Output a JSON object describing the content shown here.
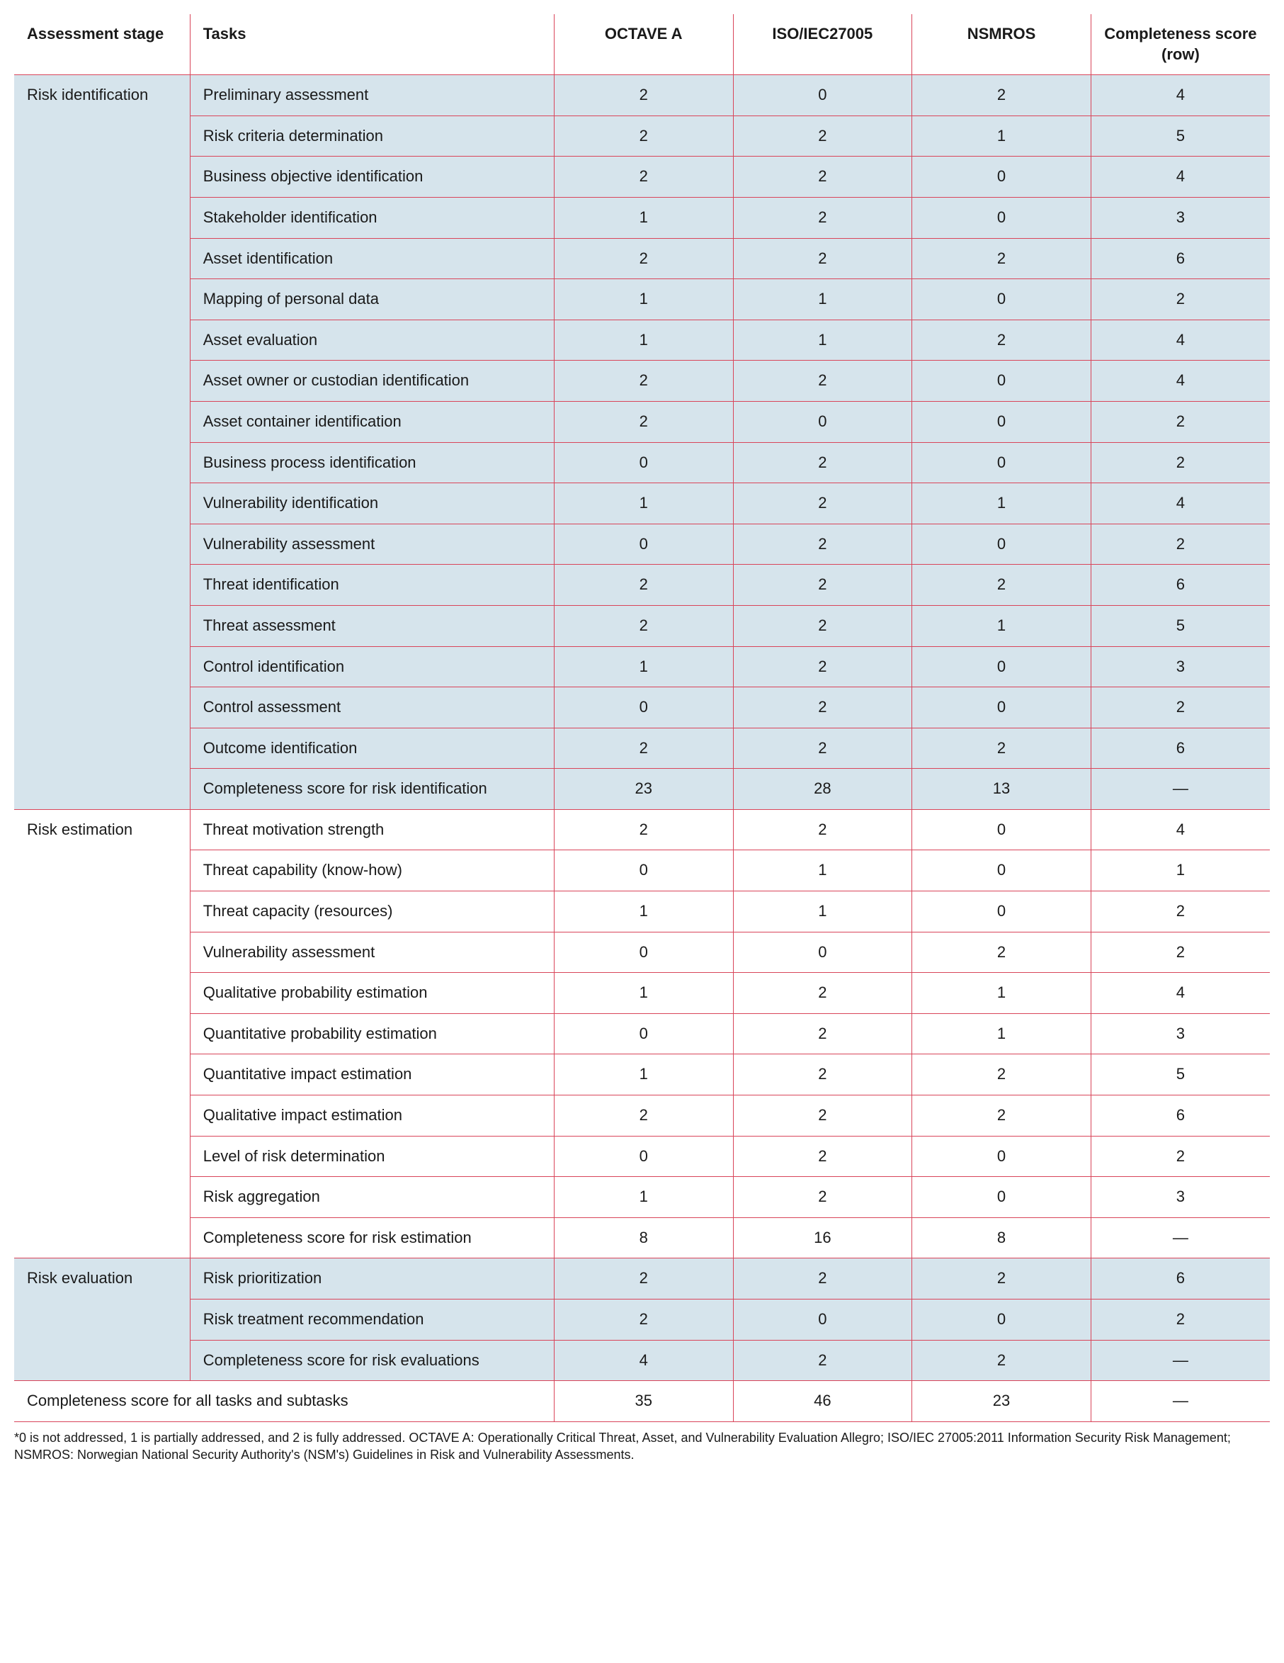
{
  "columns": {
    "stage": "Assessment stage",
    "tasks": "Tasks",
    "c1": "OCTAVE A",
    "c2": "ISO/IEC27005",
    "c3": "NSMROS",
    "c4": "Completeness score (row)"
  },
  "stages": [
    {
      "name": "Risk identification",
      "shaded": true,
      "rows": [
        {
          "task": "Preliminary assessment",
          "v": [
            "2",
            "0",
            "2",
            "4"
          ]
        },
        {
          "task": "Risk criteria determination",
          "v": [
            "2",
            "2",
            "1",
            "5"
          ]
        },
        {
          "task": "Business objective identification",
          "v": [
            "2",
            "2",
            "0",
            "4"
          ]
        },
        {
          "task": "Stakeholder identification",
          "v": [
            "1",
            "2",
            "0",
            "3"
          ]
        },
        {
          "task": "Asset identification",
          "v": [
            "2",
            "2",
            "2",
            "6"
          ]
        },
        {
          "task": "Mapping of personal data",
          "v": [
            "1",
            "1",
            "0",
            "2"
          ]
        },
        {
          "task": "Asset evaluation",
          "v": [
            "1",
            "1",
            "2",
            "4"
          ]
        },
        {
          "task": "Asset owner or custodian identification",
          "v": [
            "2",
            "2",
            "0",
            "4"
          ]
        },
        {
          "task": "Asset container identification",
          "v": [
            "2",
            "0",
            "0",
            "2"
          ]
        },
        {
          "task": "Business process identification",
          "v": [
            "0",
            "2",
            "0",
            "2"
          ]
        },
        {
          "task": "Vulnerability identification",
          "v": [
            "1",
            "2",
            "1",
            "4"
          ]
        },
        {
          "task": "Vulnerability assessment",
          "v": [
            "0",
            "2",
            "0",
            "2"
          ]
        },
        {
          "task": "Threat identification",
          "v": [
            "2",
            "2",
            "2",
            "6"
          ]
        },
        {
          "task": "Threat assessment",
          "v": [
            "2",
            "2",
            "1",
            "5"
          ]
        },
        {
          "task": "Control identification",
          "v": [
            "1",
            "2",
            "0",
            "3"
          ]
        },
        {
          "task": "Control assessment",
          "v": [
            "0",
            "2",
            "0",
            "2"
          ]
        },
        {
          "task": "Outcome identification",
          "v": [
            "2",
            "2",
            "2",
            "6"
          ]
        },
        {
          "task": "Completeness score for risk identification",
          "v": [
            "23",
            "28",
            "13",
            "—"
          ]
        }
      ]
    },
    {
      "name": "Risk estimation",
      "shaded": false,
      "rows": [
        {
          "task": "Threat motivation strength",
          "v": [
            "2",
            "2",
            "0",
            "4"
          ]
        },
        {
          "task": "Threat capability (know-how)",
          "v": [
            "0",
            "1",
            "0",
            "1"
          ]
        },
        {
          "task": "Threat capacity (resources)",
          "v": [
            "1",
            "1",
            "0",
            "2"
          ]
        },
        {
          "task": "Vulnerability assessment",
          "v": [
            "0",
            "0",
            "2",
            "2"
          ]
        },
        {
          "task": "Qualitative probability estimation",
          "v": [
            "1",
            "2",
            "1",
            "4"
          ]
        },
        {
          "task": "Quantitative probability estimation",
          "v": [
            "0",
            "2",
            "1",
            "3"
          ]
        },
        {
          "task": "Quantitative impact estimation",
          "v": [
            "1",
            "2",
            "2",
            "5"
          ]
        },
        {
          "task": "Qualitative impact estimation",
          "v": [
            "2",
            "2",
            "2",
            "6"
          ]
        },
        {
          "task": "Level of risk determination",
          "v": [
            "0",
            "2",
            "0",
            "2"
          ]
        },
        {
          "task": "Risk aggregation",
          "v": [
            "1",
            "2",
            "0",
            "3"
          ]
        },
        {
          "task": "Completeness score for risk estimation",
          "v": [
            "8",
            "16",
            "8",
            "—"
          ]
        }
      ]
    },
    {
      "name": "Risk evaluation",
      "shaded": true,
      "rows": [
        {
          "task": "Risk prioritization",
          "v": [
            "2",
            "2",
            "2",
            "6"
          ]
        },
        {
          "task": "Risk treatment recommendation",
          "v": [
            "2",
            "0",
            "0",
            "2"
          ]
        },
        {
          "task": "Completeness score for risk evaluations",
          "v": [
            "4",
            "2",
            "2",
            "—"
          ]
        }
      ]
    }
  ],
  "totalRow": {
    "label": "Completeness score for all tasks and subtasks",
    "v": [
      "35",
      "46",
      "23",
      "—"
    ]
  },
  "footnote": "*0 is not addressed, 1 is partially addressed, and 2 is fully addressed. OCTAVE A: Operationally Critical Threat, Asset, and Vulnerability Evaluation Allegro; ISO/IEC 27005:2011 Information Security Risk Management; NSMROS: Norwegian National Security Authority's (NSM's) Guidelines in Risk and Vulnerability Assessments.",
  "style": {
    "border_color": "#d9455a",
    "shade_color": "#d6e4ec",
    "bg": "#ffffff",
    "text_color": "#1a1a1a",
    "header_fontsize": 22,
    "cell_fontsize": 22,
    "footnote_fontsize": 18,
    "col_widths_pct": [
      14,
      29,
      14.25,
      14.25,
      14.25,
      14.25
    ]
  }
}
